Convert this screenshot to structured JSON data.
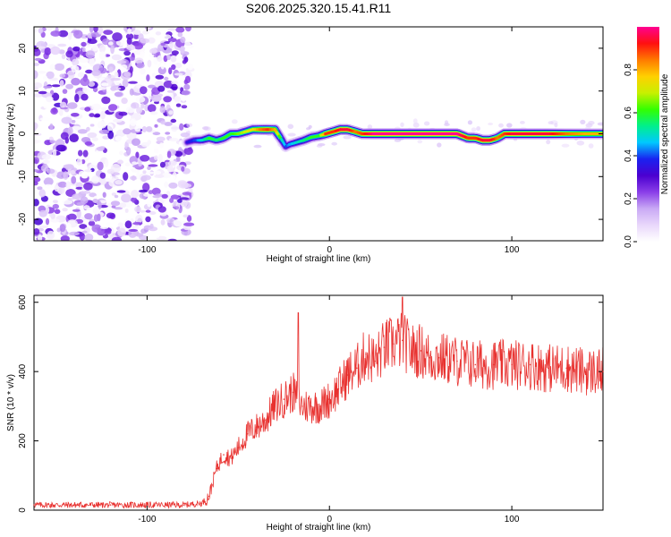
{
  "figure_title": "S206.2025.320.15.41.R11",
  "colors": {
    "snr_line": "#e8312f",
    "colormap": [
      "#ffffff",
      "#e9d8fb",
      "#c9a9f5",
      "#8a3ee8",
      "#4b00d0",
      "#1a22f0",
      "#00c8ff",
      "#00f08c",
      "#33ff00",
      "#c8f000",
      "#ffd000",
      "#ff7a00",
      "#ff1010",
      "#ff0090"
    ]
  },
  "chart_data": [
    {
      "type": "heatmap",
      "title": "S206.2025.320.15.41.R11",
      "xlabel": "Height of straight line (km)",
      "ylabel": "Frequency (Hz)",
      "xlim": [
        -162,
        150
      ],
      "ylim": [
        -25,
        25
      ],
      "xticks": [
        -100,
        0,
        100
      ],
      "yticks": [
        -20,
        -10,
        0,
        10,
        20
      ],
      "colorbar": {
        "label": "Normalized spectral amplitude",
        "range": [
          0,
          1
        ],
        "ticks": [
          "0.0",
          "0.2",
          "0.4",
          "0.6",
          "0.8"
        ]
      },
      "noise_region_x": [
        -162,
        -78
      ],
      "ridge": {
        "x": [
          -78,
          -74,
          -70,
          -66,
          -62,
          -58,
          -54,
          -50,
          -46,
          -42,
          -38,
          -34,
          -30,
          -26,
          -24,
          -22,
          -18,
          -14,
          -10,
          -6,
          -2,
          2,
          6,
          10,
          14,
          18,
          24,
          30,
          40,
          50,
          60,
          70,
          76,
          80,
          84,
          88,
          92,
          96,
          100,
          110,
          120,
          130,
          140,
          150
        ],
        "freq": [
          -2.0,
          -1.5,
          -1.5,
          -1.0,
          -1.5,
          -1.0,
          0.0,
          0.0,
          0.5,
          1.0,
          1.0,
          1.0,
          1.0,
          -1.5,
          -3.0,
          -2.5,
          -2.0,
          -1.5,
          -0.8,
          -0.5,
          0.0,
          0.5,
          1.0,
          1.0,
          0.5,
          0.0,
          0.0,
          0.0,
          0.0,
          0.0,
          0.0,
          0.0,
          -1.0,
          -1.0,
          -1.5,
          -1.5,
          -1.0,
          0.0,
          0.0,
          0.0,
          0.0,
          0.0,
          0.0,
          0.0
        ],
        "amplitude": [
          0.35,
          0.4,
          0.5,
          0.6,
          0.55,
          0.6,
          0.6,
          0.65,
          0.7,
          0.75,
          0.85,
          0.9,
          0.8,
          0.5,
          0.4,
          0.45,
          0.5,
          0.55,
          0.6,
          0.6,
          0.9,
          0.9,
          0.95,
          0.95,
          0.85,
          0.9,
          1.0,
          1.0,
          1.0,
          1.0,
          1.0,
          1.0,
          0.9,
          0.9,
          0.95,
          0.95,
          0.85,
          0.9,
          0.95,
          0.95,
          0.95,
          0.85,
          0.8,
          0.8
        ]
      }
    },
    {
      "type": "line",
      "xlabel": "Height of straight line (km)",
      "ylabel": "SNR (10 * v/v)",
      "xlim": [
        -162,
        150
      ],
      "ylim": [
        0,
        620
      ],
      "xticks": [
        -100,
        0,
        100
      ],
      "yticks": [
        0,
        200,
        400,
        600
      ],
      "series": [
        {
          "name": "SNR",
          "x": [
            -162,
            -140,
            -120,
            -100,
            -80,
            -70,
            -66,
            -62,
            -58,
            -54,
            -50,
            -45,
            -40,
            -35,
            -30,
            -25,
            -20,
            -15,
            -10,
            -5,
            0,
            5,
            10,
            15,
            20,
            25,
            30,
            35,
            40,
            45,
            50,
            55,
            60,
            70,
            80,
            90,
            100,
            110,
            120,
            130,
            140,
            150
          ],
          "values": [
            15,
            15,
            15,
            15,
            15,
            20,
            40,
            120,
            160,
            150,
            180,
            220,
            240,
            260,
            300,
            320,
            340,
            300,
            300,
            300,
            320,
            350,
            390,
            410,
            450,
            430,
            470,
            480,
            490,
            460,
            460,
            440,
            440,
            430,
            420,
            420,
            420,
            420,
            410,
            410,
            400,
            400
          ]
        }
      ],
      "annotations": {
        "max_spike": {
          "x": 40,
          "value": 615
        },
        "spike_2": {
          "x": -17,
          "value": 570
        }
      }
    }
  ]
}
